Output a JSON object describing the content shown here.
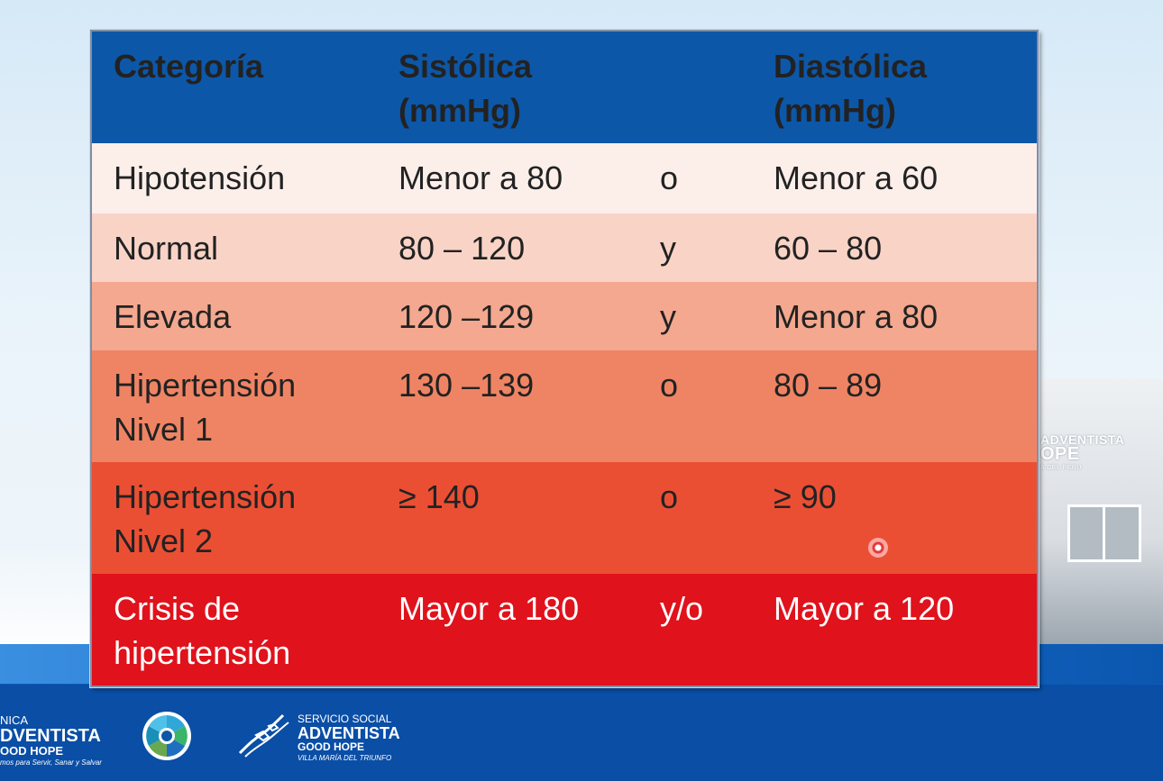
{
  "table": {
    "headers": {
      "categoria": "Categoría",
      "sistolica_line1": "Sistólica",
      "sistolica_line2": "(mmHg)",
      "diastolica_line1": "Diastólica",
      "diastolica_line2": "(mmHg)"
    },
    "rows": [
      {
        "cat1": "Hipotensión",
        "cat2": "",
        "sys": "Menor a 80",
        "conn": "o",
        "dia": "Menor a 60",
        "color": "#fcefea"
      },
      {
        "cat1": "Normal",
        "cat2": "",
        "sys": "80 – 120",
        "conn": "y",
        "dia": "60 – 80",
        "color": "#f9d4c6"
      },
      {
        "cat1": "Elevada",
        "cat2": "",
        "sys": "120 –129",
        "conn": "y",
        "dia": "Menor a 80",
        "color": "#f3a88f"
      },
      {
        "cat1": "Hipertensión",
        "cat2": "Nivel 1",
        "sys": "130 –139",
        "conn": "o",
        "dia": "80 – 89",
        "color": "#ef8464"
      },
      {
        "cat1": "Hipertensión",
        "cat2": "Nivel 2",
        "sys": "≥ 140",
        "conn": "o",
        "dia": "≥ 90",
        "color": "#ea4f34"
      },
      {
        "cat1": "Crisis de",
        "cat2": "hipertensión",
        "sys": "Mayor a 180",
        "conn": "y/o",
        "dia": "Mayor a 120",
        "color": "#e0121b"
      }
    ],
    "header_color": "#0d57a8"
  },
  "building_sign": {
    "line1": "ADVENTISTA",
    "line2": "OPE",
    "line3": "A DEL PERU"
  },
  "footer": {
    "logo1": {
      "line1": "NICA",
      "line2": "DVENTISTA",
      "line3": "OOD HOPE",
      "tagline": "mos para Servir, Sanar y Salvar"
    },
    "logo2_icon": "circular-emblem-icon",
    "logo3": {
      "line1": "SERVICIO SOCIAL",
      "line2": "ADVENTISTA",
      "line3": "GOOD HOPE",
      "line4": "VILLA MARÍA DEL TRIUNFO"
    }
  }
}
